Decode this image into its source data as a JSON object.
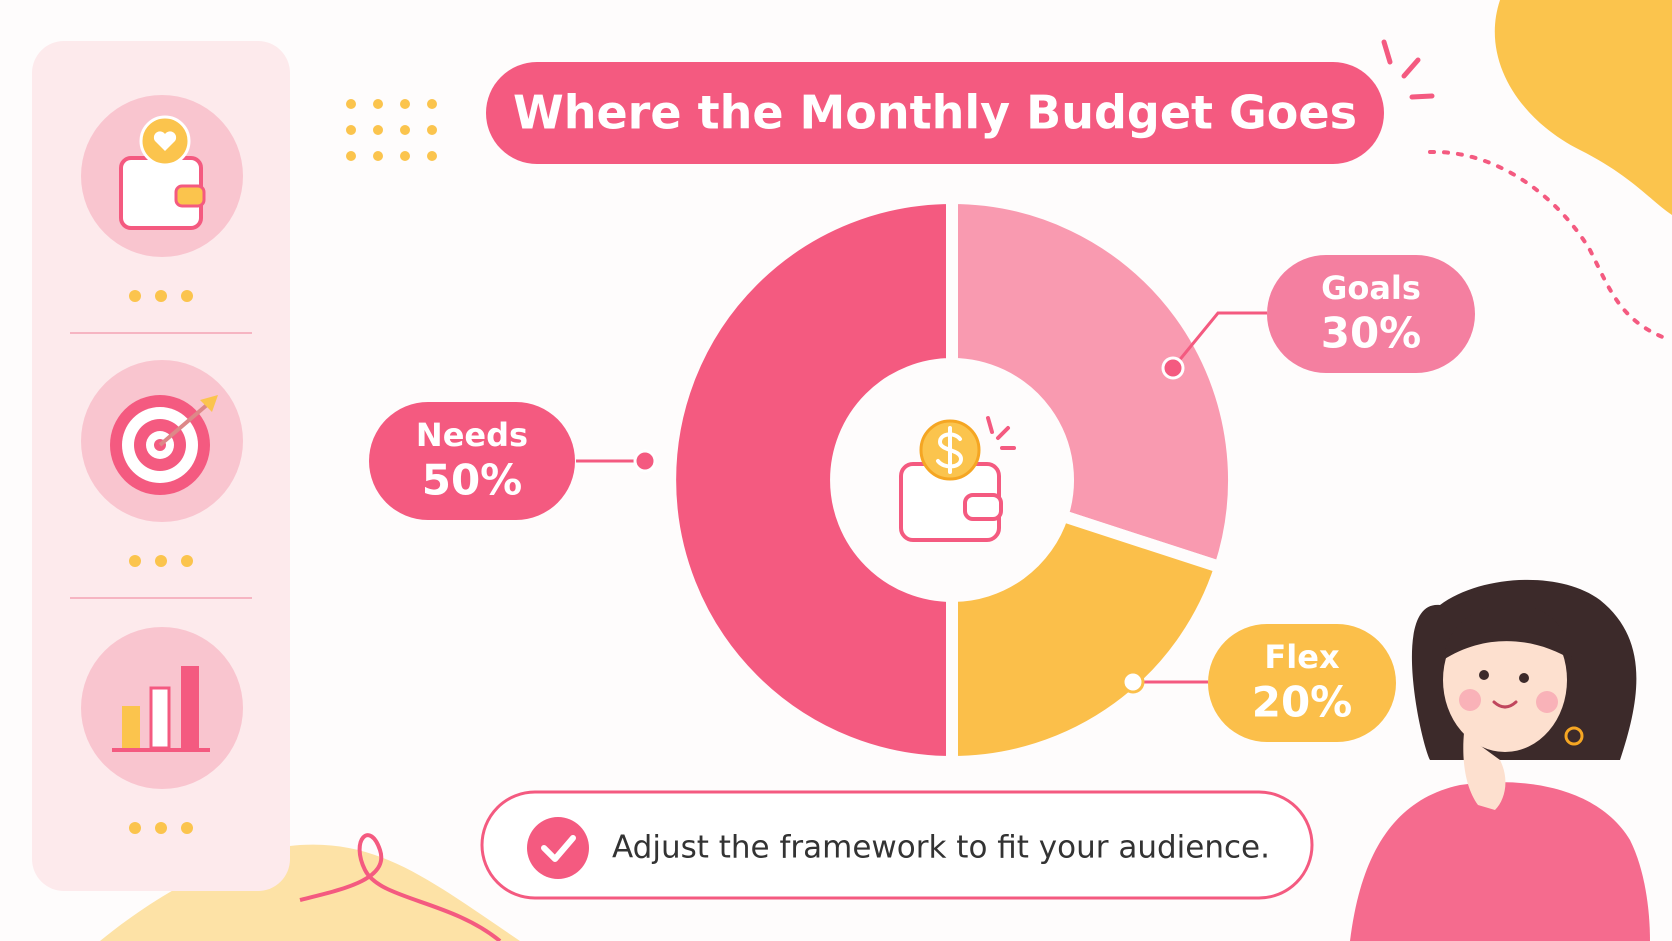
{
  "chart_data": {
    "type": "pie",
    "title": "Where the Monthly Budget Goes",
    "categories": [
      "Needs",
      "Goals",
      "Flex"
    ],
    "values": [
      50,
      30,
      20
    ],
    "value_labels": [
      "50%",
      "30%",
      "20%"
    ],
    "colors": [
      "#f45a80",
      "#f99ab0",
      "#fbbf4a"
    ],
    "footnote": "Adjust the framework to fit your audience."
  }
}
